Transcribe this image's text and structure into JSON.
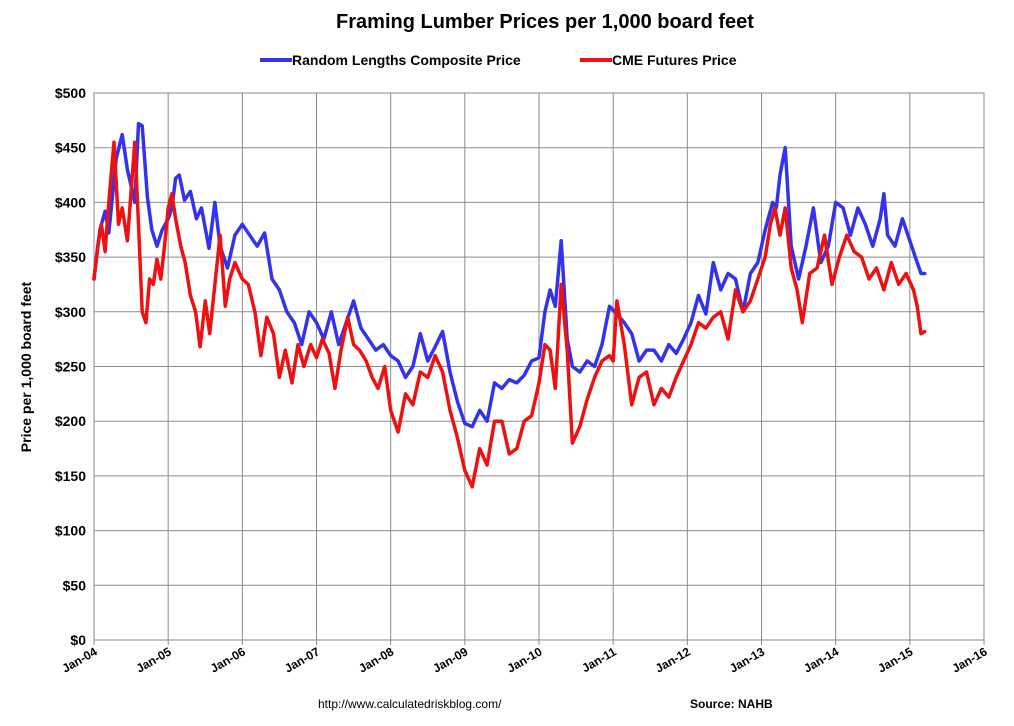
{
  "chart_data": {
    "type": "line",
    "title": "Framing Lumber Prices per 1,000 board feet",
    "xlabel": "",
    "ylabel": "Price per 1,000 board feet",
    "ylim": [
      0,
      500
    ],
    "xlim": [
      2004.0,
      2016.0
    ],
    "y_ticks": [
      "$0",
      "$50",
      "$100",
      "$150",
      "$200",
      "$250",
      "$300",
      "$350",
      "$400",
      "$450",
      "$500"
    ],
    "x_ticks": [
      "Jan-04",
      "Jan-05",
      "Jan-06",
      "Jan-07",
      "Jan-08",
      "Jan-09",
      "Jan-10",
      "Jan-11",
      "Jan-12",
      "Jan-13",
      "Jan-14",
      "Jan-15",
      "Jan-16"
    ],
    "grid": true,
    "legend_position": "top-center",
    "series": [
      {
        "name": "Random Lengths Composite Price",
        "color": "#3333ee",
        "x": [
          2004.0,
          2004.08,
          2004.15,
          2004.2,
          2004.3,
          2004.38,
          2004.45,
          2004.55,
          2004.6,
          2004.65,
          2004.72,
          2004.78,
          2004.85,
          2004.92,
          2005.0,
          2005.05,
          2005.1,
          2005.15,
          2005.22,
          2005.3,
          2005.38,
          2005.45,
          2005.55,
          2005.63,
          2005.7,
          2005.8,
          2005.9,
          2006.0,
          2006.1,
          2006.2,
          2006.3,
          2006.4,
          2006.5,
          2006.6,
          2006.7,
          2006.8,
          2006.9,
          2007.0,
          2007.1,
          2007.2,
          2007.3,
          2007.4,
          2007.5,
          2007.6,
          2007.7,
          2007.8,
          2007.9,
          2008.0,
          2008.1,
          2008.2,
          2008.3,
          2008.4,
          2008.5,
          2008.6,
          2008.7,
          2008.8,
          2008.9,
          2009.0,
          2009.1,
          2009.2,
          2009.3,
          2009.4,
          2009.5,
          2009.6,
          2009.7,
          2009.8,
          2009.9,
          2010.0,
          2010.08,
          2010.15,
          2010.22,
          2010.3,
          2010.38,
          2010.45,
          2010.55,
          2010.65,
          2010.75,
          2010.85,
          2010.95,
          2011.05,
          2011.15,
          2011.25,
          2011.35,
          2011.45,
          2011.55,
          2011.65,
          2011.75,
          2011.85,
          2011.95,
          2012.05,
          2012.15,
          2012.25,
          2012.35,
          2012.45,
          2012.55,
          2012.65,
          2012.75,
          2012.85,
          2012.95,
          2013.05,
          2013.15,
          2013.2,
          2013.25,
          2013.32,
          2013.4,
          2013.5,
          2013.6,
          2013.7,
          2013.8,
          2013.9,
          2014.0,
          2014.1,
          2014.2,
          2014.3,
          2014.4,
          2014.5,
          2014.6,
          2014.65,
          2014.7,
          2014.8,
          2014.9,
          2015.0,
          2015.1,
          2015.15,
          2015.2
        ],
        "values": [
          330,
          375,
          392,
          372,
          440,
          462,
          430,
          400,
          472,
          470,
          405,
          375,
          360,
          375,
          385,
          395,
          422,
          425,
          402,
          410,
          385,
          395,
          358,
          400,
          360,
          340,
          370,
          380,
          370,
          360,
          372,
          330,
          320,
          300,
          290,
          270,
          300,
          290,
          275,
          300,
          270,
          290,
          310,
          285,
          275,
          265,
          270,
          260,
          255,
          240,
          250,
          280,
          255,
          268,
          282,
          245,
          218,
          198,
          195,
          210,
          200,
          235,
          230,
          238,
          235,
          242,
          255,
          258,
          300,
          320,
          305,
          365,
          275,
          250,
          245,
          255,
          250,
          270,
          305,
          298,
          290,
          280,
          255,
          265,
          265,
          255,
          270,
          262,
          275,
          290,
          315,
          298,
          345,
          320,
          335,
          330,
          300,
          335,
          345,
          375,
          400,
          395,
          425,
          450,
          360,
          330,
          360,
          395,
          345,
          360,
          400,
          395,
          370,
          395,
          380,
          360,
          385,
          408,
          370,
          360,
          385,
          365,
          345,
          335,
          335
        ],
        "value_labels": []
      },
      {
        "name": "CME Futures Price",
        "color": "#ee1111",
        "x": [
          2004.0,
          2004.05,
          2004.1,
          2004.15,
          2004.2,
          2004.27,
          2004.33,
          2004.38,
          2004.45,
          2004.5,
          2004.55,
          2004.6,
          2004.65,
          2004.7,
          2004.75,
          2004.8,
          2004.85,
          2004.9,
          2004.95,
          2005.0,
          2005.05,
          2005.1,
          2005.17,
          2005.23,
          2005.3,
          2005.37,
          2005.43,
          2005.5,
          2005.56,
          2005.63,
          2005.7,
          2005.77,
          2005.83,
          2005.9,
          2006.0,
          2006.08,
          2006.17,
          2006.25,
          2006.33,
          2006.42,
          2006.5,
          2006.58,
          2006.67,
          2006.75,
          2006.83,
          2006.92,
          2007.0,
          2007.08,
          2007.17,
          2007.25,
          2007.33,
          2007.42,
          2007.5,
          2007.58,
          2007.67,
          2007.75,
          2007.83,
          2007.92,
          2008.0,
          2008.1,
          2008.2,
          2008.3,
          2008.4,
          2008.5,
          2008.6,
          2008.7,
          2008.8,
          2008.9,
          2009.0,
          2009.1,
          2009.2,
          2009.3,
          2009.4,
          2009.5,
          2009.6,
          2009.7,
          2009.8,
          2009.9,
          2010.0,
          2010.08,
          2010.15,
          2010.22,
          2010.3,
          2010.38,
          2010.45,
          2010.55,
          2010.65,
          2010.75,
          2010.85,
          2010.95,
          2011.0,
          2011.05,
          2011.15,
          2011.25,
          2011.35,
          2011.45,
          2011.55,
          2011.65,
          2011.75,
          2011.85,
          2011.95,
          2012.05,
          2012.15,
          2012.25,
          2012.35,
          2012.45,
          2012.55,
          2012.65,
          2012.75,
          2012.85,
          2012.95,
          2013.05,
          2013.12,
          2013.18,
          2013.25,
          2013.32,
          2013.4,
          2013.48,
          2013.55,
          2013.65,
          2013.75,
          2013.85,
          2013.95,
          2014.05,
          2014.15,
          2014.25,
          2014.35,
          2014.45,
          2014.55,
          2014.65,
          2014.75,
          2014.85,
          2014.95,
          2015.05,
          2015.1,
          2015.15,
          2015.2
        ],
        "values": [
          330,
          360,
          380,
          355,
          400,
          455,
          380,
          395,
          365,
          410,
          455,
          380,
          300,
          290,
          330,
          325,
          348,
          330,
          360,
          395,
          408,
          385,
          360,
          345,
          315,
          300,
          268,
          310,
          280,
          325,
          370,
          305,
          330,
          345,
          330,
          325,
          300,
          260,
          295,
          280,
          240,
          265,
          235,
          270,
          250,
          270,
          258,
          275,
          262,
          230,
          265,
          295,
          270,
          265,
          255,
          240,
          230,
          250,
          210,
          190,
          225,
          215,
          245,
          240,
          260,
          245,
          210,
          185,
          155,
          140,
          175,
          160,
          200,
          200,
          170,
          175,
          200,
          205,
          235,
          270,
          265,
          230,
          325,
          265,
          180,
          195,
          220,
          240,
          255,
          260,
          255,
          310,
          270,
          215,
          240,
          245,
          215,
          230,
          222,
          240,
          255,
          270,
          290,
          285,
          295,
          300,
          275,
          320,
          300,
          310,
          330,
          350,
          380,
          395,
          370,
          395,
          340,
          320,
          290,
          335,
          340,
          370,
          325,
          350,
          370,
          355,
          350,
          330,
          340,
          320,
          345,
          325,
          335,
          320,
          305,
          280,
          282
        ]
      }
    ]
  },
  "footer": {
    "url": "http://www.calculatedriskblog.com/",
    "source": "Source: NAHB"
  }
}
